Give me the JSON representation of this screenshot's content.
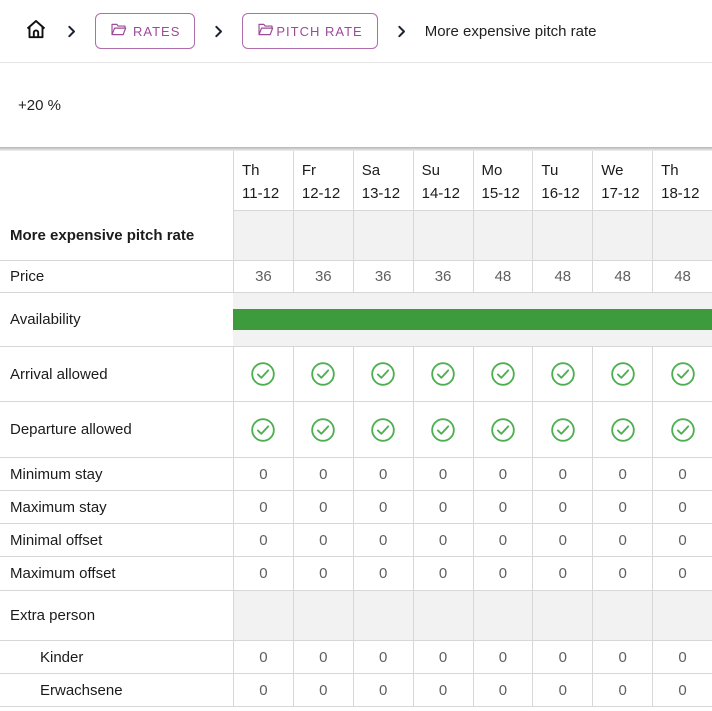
{
  "breadcrumb": {
    "items": [
      {
        "label": "RATES"
      },
      {
        "label": "PITCH RATE"
      },
      {
        "label": "More expensive pitch rate"
      }
    ]
  },
  "rate_summary": {
    "adjustment": "+20 %"
  },
  "table": {
    "columns": [
      {
        "day": "Th",
        "date": "11-12"
      },
      {
        "day": "Fr",
        "date": "12-12"
      },
      {
        "day": "Sa",
        "date": "13-12"
      },
      {
        "day": "Su",
        "date": "14-12"
      },
      {
        "day": "Mo",
        "date": "15-12"
      },
      {
        "day": "Tu",
        "date": "16-12"
      },
      {
        "day": "We",
        "date": "17-12"
      },
      {
        "day": "Th",
        "date": "18-12"
      }
    ],
    "rows": [
      {
        "id": "rate-name",
        "label": "More expensive pitch rate",
        "type": "section",
        "bold": true
      },
      {
        "id": "price",
        "label": "Price",
        "type": "values",
        "values": [
          "36",
          "36",
          "36",
          "36",
          "48",
          "48",
          "48",
          "48"
        ]
      },
      {
        "id": "availability",
        "label": "Availability",
        "type": "availability",
        "available": [
          true,
          true,
          true,
          true,
          true,
          true,
          true,
          true
        ]
      },
      {
        "id": "arrival-allowed",
        "label": "Arrival allowed",
        "type": "checks",
        "values": [
          true,
          true,
          true,
          true,
          true,
          true,
          true,
          true
        ]
      },
      {
        "id": "departure-allowed",
        "label": "Departure allowed",
        "type": "checks",
        "values": [
          true,
          true,
          true,
          true,
          true,
          true,
          true,
          true
        ]
      },
      {
        "id": "minimum-stay",
        "label": "Minimum stay",
        "type": "values",
        "values": [
          "0",
          "0",
          "0",
          "0",
          "0",
          "0",
          "0",
          "0"
        ]
      },
      {
        "id": "maximum-stay",
        "label": "Maximum stay",
        "type": "values",
        "values": [
          "0",
          "0",
          "0",
          "0",
          "0",
          "0",
          "0",
          "0"
        ]
      },
      {
        "id": "minimal-offset",
        "label": "Minimal offset",
        "type": "values",
        "values": [
          "0",
          "0",
          "0",
          "0",
          "0",
          "0",
          "0",
          "0"
        ]
      },
      {
        "id": "maximum-offset",
        "label": "Maximum offset",
        "type": "values",
        "values": [
          "0",
          "0",
          "0",
          "0",
          "0",
          "0",
          "0",
          "0"
        ]
      },
      {
        "id": "extra-person",
        "label": "Extra person",
        "type": "section",
        "bold": false
      },
      {
        "id": "kinder",
        "label": "Kinder",
        "type": "values",
        "indent": true,
        "values": [
          "0",
          "0",
          "0",
          "0",
          "0",
          "0",
          "0",
          "0"
        ]
      },
      {
        "id": "erwachsene",
        "label": "Erwachsene",
        "type": "values",
        "indent": true,
        "values": [
          "0",
          "0",
          "0",
          "0",
          "0",
          "0",
          "0",
          "0"
        ]
      }
    ]
  },
  "colors": {
    "accent_purple": "#9c4a99",
    "check_green": "#4caf50",
    "availability_green": "#3d9b3d",
    "cell_gray": "#f2f2f2",
    "value_gray": "#5f5f5f"
  },
  "icons": {
    "home": "home-icon",
    "folder": "open-folder-icon",
    "separator": "chevron-right-icon",
    "allowed": "check-circle-icon"
  }
}
